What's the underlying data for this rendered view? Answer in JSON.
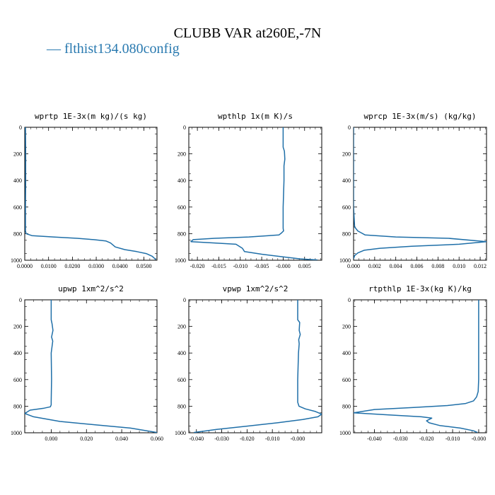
{
  "figure": {
    "title": "CLUBB VAR at260E,-7N",
    "legend_label": "— flthist134.080config",
    "line_color": "#1f6fa8"
  },
  "chart_data": [
    {
      "type": "line",
      "title": "wprtp  1E-3x(m kg)/(s kg)",
      "xlim": [
        0.0,
        0.0555
      ],
      "ylim": [
        1000,
        0
      ],
      "xticks": [
        0.0,
        0.01,
        0.02,
        0.03,
        0.04,
        0.05
      ],
      "xticklabels": [
        "0.0000",
        "0.0100",
        "0.0200",
        "0.0300",
        "0.0400",
        "0.0500"
      ],
      "yticks": [
        0,
        200,
        400,
        600,
        800,
        1000
      ],
      "yticklabels": [
        "0",
        "200",
        "400",
        "600",
        "800",
        "1000"
      ],
      "series": [
        {
          "x": [
            0.0003,
            0.0004,
            0.0004,
            0.0003,
            0.0003,
            0.0003,
            0.0006,
            0.003,
            0.012,
            0.022,
            0.029,
            0.034,
            0.036,
            0.038,
            0.042,
            0.047,
            0.051,
            0.0535,
            0.055
          ],
          "y": [
            0,
            200,
            400,
            600,
            750,
            780,
            800,
            815,
            825,
            835,
            845,
            855,
            870,
            900,
            920,
            935,
            950,
            970,
            995
          ]
        }
      ]
    },
    {
      "type": "line",
      "title": "wpthlp  1x(m K)/s",
      "xlim": [
        -0.022,
        0.009
      ],
      "ylim": [
        1000,
        0
      ],
      "xticks": [
        -0.02,
        -0.015,
        -0.01,
        -0.005,
        0.0,
        0.005
      ],
      "xticklabels": [
        "-0.020",
        "-0.015",
        "-0.010",
        "-0.005",
        "-0.000",
        "0.005"
      ],
      "yticks": [
        0,
        200,
        400,
        600,
        800,
        1000
      ],
      "yticklabels": [
        "0",
        "200",
        "400",
        "600",
        "800",
        "1000"
      ],
      "series": [
        {
          "x": [
            0.0,
            0.0,
            0.0003,
            0.0004,
            0.0002,
            0.0002,
            0.0,
            0.0,
            0.0001,
            -0.0004,
            -0.001,
            -0.008,
            -0.016,
            -0.021,
            -0.0215,
            -0.016,
            -0.011,
            -0.0095,
            -0.009,
            -0.005,
            0.0,
            0.004,
            0.008
          ],
          "y": [
            0,
            150,
            180,
            240,
            290,
            400,
            600,
            760,
            780,
            795,
            810,
            825,
            835,
            845,
            860,
            870,
            880,
            910,
            935,
            955,
            975,
            990,
            998
          ]
        }
      ]
    },
    {
      "type": "line",
      "title": "wprcp  1E-3x(m/s) (kg/kg)",
      "xlim": [
        0.0,
        0.0126
      ],
      "ylim": [
        1000,
        0
      ],
      "xticks": [
        0.0,
        0.002,
        0.004,
        0.006,
        0.008,
        0.01,
        0.012
      ],
      "xticklabels": [
        "0.000",
        "0.002",
        "0.004",
        "0.006",
        "0.008",
        "0.010",
        "0.012"
      ],
      "yticks": [
        0,
        200,
        400,
        600,
        800,
        1000
      ],
      "yticklabels": [
        "0",
        "200",
        "400",
        "600",
        "800",
        "1000"
      ],
      "series": [
        {
          "x": [
            0.0,
            0.0,
            0.0,
            0.0,
            0.0001,
            0.0004,
            0.0011,
            0.004,
            0.009,
            0.0126,
            0.01,
            0.0055,
            0.0025,
            0.001,
            0.0004,
            0.0001,
            0.0
          ],
          "y": [
            0,
            200,
            400,
            600,
            750,
            780,
            810,
            825,
            835,
            860,
            880,
            895,
            910,
            925,
            945,
            965,
            990
          ]
        }
      ]
    },
    {
      "type": "line",
      "title": "upwp  1xm^2/s^2",
      "xlim": [
        -0.015,
        0.06
      ],
      "ylim": [
        1000,
        0
      ],
      "xticks": [
        0.0,
        0.02,
        0.04,
        0.06
      ],
      "xticklabels": [
        "0.000",
        "0.020",
        "0.040",
        "0.060"
      ],
      "yticks": [
        0,
        200,
        400,
        600,
        800,
        1000
      ],
      "yticklabels": [
        "0",
        "200",
        "400",
        "600",
        "800",
        "1000"
      ],
      "series": [
        {
          "x": [
            0.0,
            0.0,
            0.0005,
            0.001,
            0.0002,
            0.0009,
            0.0,
            0.0002,
            0.0,
            0.0,
            -0.0005,
            -0.004,
            -0.012,
            -0.015,
            -0.01,
            0.005,
            0.025,
            0.045,
            0.06
          ],
          "y": [
            0,
            150,
            180,
            230,
            280,
            310,
            400,
            600,
            760,
            790,
            805,
            815,
            830,
            855,
            880,
            915,
            940,
            965,
            998
          ]
        }
      ]
    },
    {
      "type": "line",
      "title": "vpwp  1xm^2/s^2",
      "xlim": [
        -0.043,
        0.0095
      ],
      "ylim": [
        1000,
        0
      ],
      "xticks": [
        -0.04,
        -0.03,
        -0.02,
        -0.01,
        0.0
      ],
      "xticklabels": [
        "-0.040",
        "-0.030",
        "-0.020",
        "-0.010",
        "-0.000"
      ],
      "yticks": [
        0,
        200,
        400,
        600,
        800,
        1000
      ],
      "yticklabels": [
        "0",
        "200",
        "400",
        "600",
        "800",
        "1000"
      ],
      "series": [
        {
          "x": [
            0.0,
            0.0,
            0.0008,
            0.0006,
            0.001,
            0.0004,
            0.0006,
            0.0003,
            0.0,
            0.0,
            0.0005,
            0.003,
            0.007,
            0.0095,
            0.008,
            0.002,
            -0.008,
            -0.02,
            -0.032,
            -0.041
          ],
          "y": [
            0,
            150,
            170,
            230,
            260,
            300,
            330,
            400,
            600,
            770,
            800,
            820,
            840,
            860,
            880,
            900,
            925,
            950,
            975,
            998
          ]
        }
      ]
    },
    {
      "type": "line",
      "title": "rtpthlp  1E-3x(kg K)/kg",
      "xlim": [
        -0.048,
        0.003
      ],
      "ylim": [
        1000,
        0
      ],
      "xticks": [
        -0.04,
        -0.03,
        -0.02,
        -0.01,
        0.0
      ],
      "xticklabels": [
        "-0.040",
        "-0.030",
        "-0.020",
        "-0.010",
        "-0.000"
      ],
      "yticks": [
        0,
        200,
        400,
        600,
        800,
        1000
      ],
      "yticklabels": [
        "0",
        "200",
        "400",
        "600",
        "800",
        "1000"
      ],
      "series": [
        {
          "x": [
            0.0,
            0.0,
            0.0,
            0.0,
            -0.0002,
            -0.0008,
            -0.002,
            -0.005,
            -0.012,
            -0.025,
            -0.04,
            -0.048,
            -0.035,
            -0.022,
            -0.018,
            -0.02,
            -0.019,
            -0.015,
            -0.007,
            -0.002,
            -0.0005
          ],
          "y": [
            0,
            200,
            400,
            600,
            690,
            730,
            760,
            780,
            795,
            810,
            825,
            850,
            865,
            880,
            890,
            910,
            925,
            945,
            965,
            985,
            998
          ]
        }
      ]
    }
  ]
}
